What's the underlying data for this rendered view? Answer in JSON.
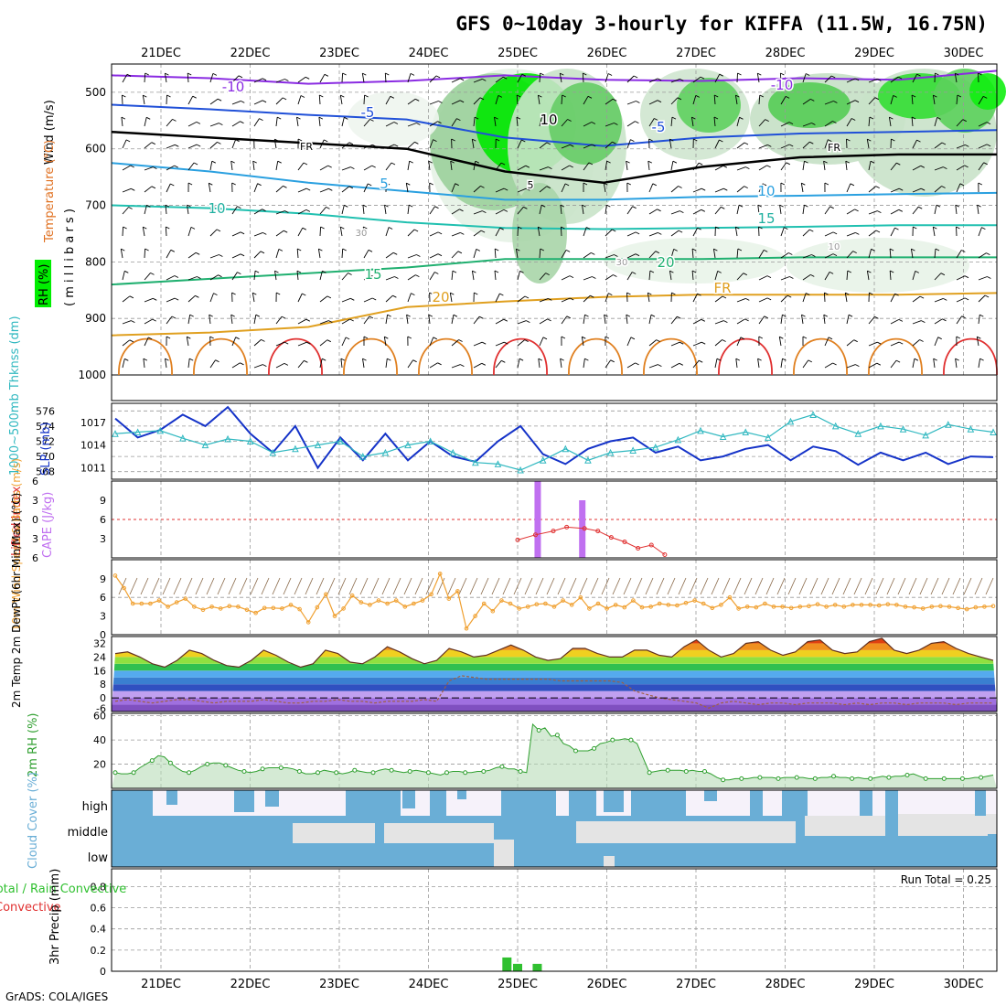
{
  "title": "GFS 0~10day 3-hourly for KIFFA (11.5W, 16.75N)",
  "footer": "GrADS: COLA/IGES",
  "dates": [
    "21DEC",
    "22DEC",
    "23DEC",
    "24DEC",
    "25DEC",
    "26DEC",
    "27DEC",
    "28DEC",
    "29DEC",
    "30DEC"
  ],
  "colors": {
    "rh_green": "#00ee00",
    "temp_contour": "#e08020",
    "wind": "#000000",
    "slp": "#1533c8",
    "thickness": "#30b8c0",
    "lifted": "#e03030",
    "cape": "#c070f0",
    "wind10": "#f0a030",
    "rh2m": "#30a030",
    "cloud": "#6aaed6",
    "precip": "#30c030"
  },
  "chart_data": [
    {
      "type": "heatmap",
      "panel": "upper-air",
      "ylabels": {
        "wind": "Wind (m/s)",
        "temp": "Temperature (°C)",
        "pressure": "( m i l l i b a r s )",
        "rh": "RH (%)"
      },
      "yticks": [
        500,
        600,
        700,
        800,
        900,
        1000
      ],
      "contour_labels": [
        "-10",
        "-5",
        "FR",
        "5",
        "10",
        "15",
        "20",
        "30",
        "10",
        "FR",
        "-5",
        "-10",
        "5",
        "10",
        "15",
        "20",
        "FR",
        "30",
        "10"
      ],
      "isotherms": [
        {
          "label": "-10",
          "values": [
            470,
            475,
            485,
            480,
            470,
            478,
            480,
            475,
            478,
            462
          ]
        },
        {
          "label": "-5",
          "values": [
            522,
            530,
            540,
            548,
            580,
            595,
            580,
            573,
            570,
            567
          ]
        },
        {
          "label": "FR",
          "values": [
            570,
            580,
            590,
            600,
            640,
            660,
            632,
            615,
            610,
            610
          ]
        },
        {
          "label": "5",
          "values": [
            625,
            640,
            660,
            675,
            690,
            690,
            685,
            683,
            680,
            678
          ]
        },
        {
          "label": "10",
          "values": [
            700,
            705,
            715,
            730,
            740,
            742,
            740,
            738,
            735,
            735
          ]
        },
        {
          "label": "15",
          "values": [
            840,
            830,
            820,
            810,
            795,
            795,
            795,
            792,
            792,
            792
          ]
        },
        {
          "label": "20",
          "values": [
            930,
            925,
            915,
            880,
            870,
            862,
            858,
            858,
            858,
            855
          ]
        }
      ]
    },
    {
      "type": "line",
      "panel": "thickness-slp",
      "ylabel_left": "1000~500mb Thknss (dm)",
      "ylabel_right": "SLP (mb)",
      "yticks_left": [
        568,
        570,
        572,
        574,
        576
      ],
      "yticks_right": [
        1011,
        1014,
        1017
      ],
      "series": [
        {
          "name": "SLP (mb)",
          "values": [
            1017.5,
            1015,
            1016,
            1018,
            1016.5,
            1019,
            1015.5,
            1013,
            1016.5,
            1011,
            1015,
            1012,
            1015.5,
            1012,
            1014.5,
            1012.5,
            1011.8,
            1014.5,
            1016.5,
            1012.8,
            1011.5,
            1013.5,
            1014.5,
            1015,
            1013,
            1013.8,
            1012,
            1012.5,
            1013.5,
            1014,
            1012,
            1013.8,
            1013.2,
            1011.4,
            1013,
            1012,
            1013,
            1011.5,
            1012.5,
            1012.4
          ]
        },
        {
          "name": "Thickness (dm)",
          "values": [
            573,
            573.2,
            573.4,
            572.4,
            571.5,
            572.3,
            572,
            570.5,
            571,
            571.5,
            572,
            570,
            570.5,
            571.5,
            572,
            570.5,
            569.2,
            569,
            568.2,
            569.5,
            571,
            569.5,
            570.5,
            570.8,
            571.2,
            572.2,
            573.4,
            572.6,
            573.2,
            572.5,
            574.6,
            575.5,
            574,
            573,
            574,
            573.6,
            572.8,
            574.2,
            573.6,
            573.2
          ]
        }
      ]
    },
    {
      "type": "bar",
      "panel": "cape-lifted-index",
      "ylabel_left": "Lifted Index",
      "ylabel_right": "CAPE (J/kg)",
      "yticks_left": [
        -6,
        -3,
        0,
        3,
        6
      ],
      "yticks_right": [
        3,
        6,
        9
      ],
      "cape_bars": [
        {
          "date_index": 4.22,
          "value": 12
        },
        {
          "date_index": 4.72,
          "value": 9
        }
      ],
      "lifted_index": [
        {
          "x": 4.0,
          "value": 3.2
        },
        {
          "x": 4.2,
          "value": 2.4
        },
        {
          "x": 4.4,
          "value": 1.8
        },
        {
          "x": 4.55,
          "value": 1.2
        },
        {
          "x": 4.75,
          "value": 1.4
        },
        {
          "x": 4.9,
          "value": 1.8
        },
        {
          "x": 5.05,
          "value": 2.8
        },
        {
          "x": 5.2,
          "value": 3.5
        },
        {
          "x": 5.35,
          "value": 4.5
        },
        {
          "x": 5.5,
          "value": 4.0
        },
        {
          "x": 5.65,
          "value": 5.5
        }
      ]
    },
    {
      "type": "line",
      "panel": "wind10m",
      "ylabel": "10m Wind Speed & Barbs (m/s)",
      "yticks": [
        0,
        3,
        6,
        9
      ],
      "series": [
        {
          "name": "10m Wind Speed",
          "values": [
            9.5,
            7.5,
            5,
            5,
            5,
            5.5,
            4.5,
            5.2,
            5.8,
            4.5,
            4,
            4.5,
            4.2,
            4.6,
            4.5,
            4,
            3.5,
            4.3,
            4.3,
            4.2,
            4.8,
            4.1,
            2,
            4.4,
            6.5,
            3,
            4.2,
            6.3,
            5.2,
            4.8,
            5.5,
            5,
            5.5,
            4.5,
            5,
            5.5,
            6.5,
            9.8,
            5.8,
            7,
            1,
            3,
            5,
            3.8,
            5.5,
            5,
            4.2,
            4.5,
            4.9,
            5,
            4.5,
            5.5,
            4.8,
            6,
            4.2,
            5,
            4.2,
            4.8,
            4.4,
            5.5,
            4.4,
            4.5,
            5,
            4.8,
            4.7,
            5.1,
            5.5,
            5,
            4.3,
            4.8,
            6,
            4.2,
            4.5,
            4.4,
            5,
            4.5,
            4.5,
            4.3,
            4.5,
            4.6,
            4.9,
            4.5,
            4.8,
            4.5,
            4.8,
            4.8,
            4.8,
            4.7,
            4.9,
            4.8,
            4.5,
            4.4,
            4.2,
            4.5,
            4.6,
            4.5,
            4.3,
            4.1,
            4.4,
            4.5,
            4.6
          ]
        }
      ]
    },
    {
      "type": "area",
      "panel": "temp2m",
      "ylabel": "2m Temp 2m DewPt (6hr Min/Max) (°C)",
      "yticks": [
        -6,
        0,
        8,
        16,
        24,
        32
      ],
      "series": [
        {
          "name": "2m Temp",
          "values": [
            26,
            27,
            24,
            20,
            18,
            22,
            28,
            26,
            22,
            19,
            18,
            22,
            28,
            25,
            21,
            18,
            20,
            28,
            26,
            21,
            20,
            24,
            30,
            27,
            23,
            20,
            22,
            29,
            27,
            24,
            25,
            28,
            31,
            28,
            24,
            22,
            23,
            29,
            29,
            26,
            24,
            24,
            28,
            28,
            25,
            24,
            30,
            34,
            28,
            24,
            26,
            32,
            33,
            28,
            25,
            27,
            33,
            34,
            28,
            26,
            27,
            33,
            35,
            28,
            26,
            28,
            32,
            33,
            29,
            26,
            24,
            22
          ]
        },
        {
          "name": "2m DewPt",
          "values": [
            -2,
            -1,
            -2,
            -3,
            -2,
            -1,
            -1,
            -2,
            -3,
            -2,
            -2,
            -2,
            -1,
            -2,
            -3,
            -3,
            -2,
            -2,
            -1,
            -2,
            -2,
            -3,
            -2,
            -2,
            -2,
            -1,
            -2,
            10,
            13,
            12,
            11,
            11,
            11,
            11,
            11,
            11,
            10,
            10,
            10,
            10,
            10,
            9,
            4,
            2,
            0,
            -1,
            -2,
            -3,
            -6,
            -3,
            -2,
            -3,
            -4,
            -3,
            -3,
            -4,
            -3,
            -3,
            -3,
            -4,
            -3,
            -4,
            -3,
            -3,
            -4,
            -3,
            -3,
            -3,
            -4,
            -3,
            -3,
            -3
          ]
        }
      ]
    },
    {
      "type": "area",
      "panel": "rh2m",
      "ylabel": "2m RH (%)",
      "yticks": [
        20,
        40,
        60
      ],
      "series": [
        {
          "name": "2m RH",
          "values": [
            13,
            12,
            12,
            13,
            17,
            20,
            23,
            27,
            26,
            21,
            17,
            14,
            13,
            15,
            18,
            20,
            21,
            21,
            19,
            17,
            15,
            14,
            13,
            14,
            16,
            17,
            17,
            17,
            17,
            16,
            14,
            12,
            12,
            13,
            15,
            14,
            13,
            12,
            13,
            15,
            14,
            13,
            13,
            15,
            16,
            15,
            14,
            13,
            14,
            15,
            14,
            13,
            12,
            11,
            13,
            14,
            14,
            13,
            13,
            14,
            14,
            15,
            17,
            18,
            16,
            16,
            14,
            13,
            53,
            48,
            50,
            43,
            44,
            37,
            35,
            31,
            31,
            31,
            33,
            37,
            38,
            40,
            40,
            41,
            40,
            37,
            25,
            13,
            14,
            15,
            15,
            15,
            15,
            14,
            15,
            14,
            14,
            12,
            9,
            7,
            7,
            8,
            8,
            8,
            9,
            9,
            9,
            9,
            8,
            9,
            9,
            9,
            9,
            8,
            8,
            9,
            9,
            10,
            9,
            9,
            8,
            9,
            8,
            8,
            9,
            10,
            9,
            10,
            10,
            11,
            12,
            10,
            8,
            8,
            8,
            8,
            8,
            8,
            8,
            8,
            9,
            9,
            10,
            11
          ]
        }
      ]
    },
    {
      "type": "bar",
      "panel": "cloud-cover",
      "ylabel": "Cloud Cover (%)",
      "levels": [
        "high",
        "middle",
        "low"
      ]
    },
    {
      "type": "bar",
      "panel": "precip",
      "ylabel_left": "Total / Rain Convective",
      "ylabel_right": "3hr Precip (mm)",
      "yticks": [
        0,
        0.2,
        0.4,
        0.6,
        0.8
      ],
      "run_total": "Run Total = 0.25",
      "bars": [
        {
          "date_index": 3.88,
          "value": 0.13
        },
        {
          "date_index": 4.0,
          "value": 0.07
        },
        {
          "date_index": 4.22,
          "value": 0.07
        }
      ]
    }
  ]
}
